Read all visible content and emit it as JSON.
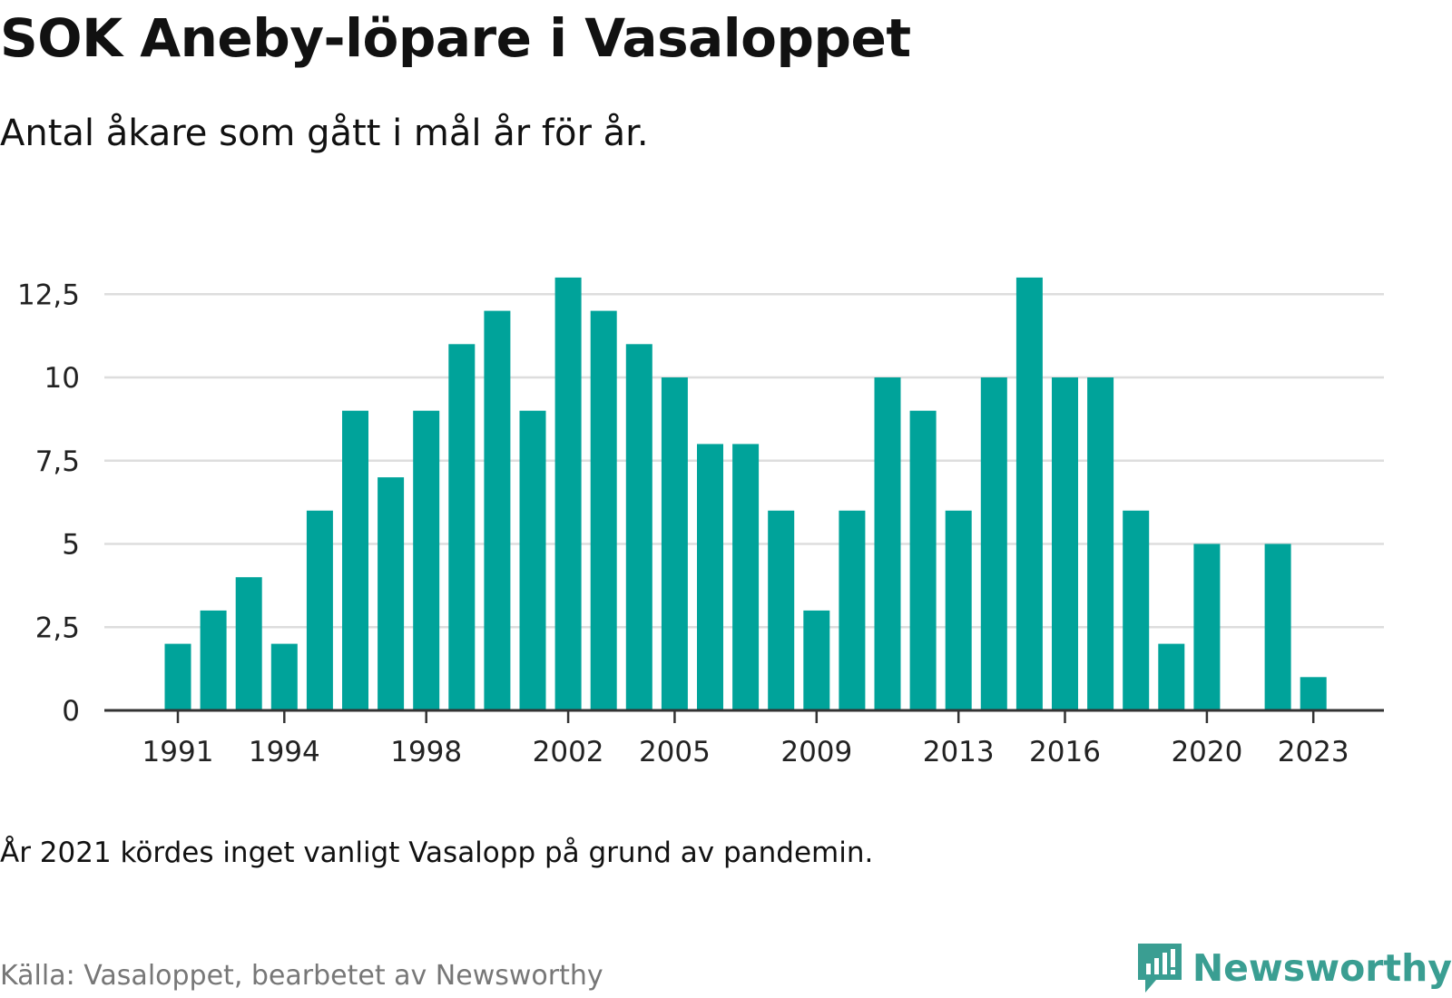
{
  "title": "SOK Aneby-löpare i Vasaloppet",
  "subtitle": "Antal åkare som gått i mål år för år.",
  "note": "År 2021 kördes inget vanligt Vasalopp på grund av pandemin.",
  "source": "Källa: Vasaloppet, bearbetet av Newsworthy",
  "brand": {
    "name": "Newsworthy",
    "color": "#3a9e92",
    "icon": "newsworthy-logo-icon"
  },
  "colors": {
    "bar": "#00a39a",
    "grid": "#dddddd",
    "axis": "#333333"
  },
  "chart_data": {
    "type": "bar",
    "title": "SOK Aneby-löpare i Vasaloppet",
    "subtitle": "Antal åkare som gått i mål år för år.",
    "xlabel": "",
    "ylabel": "",
    "categories": [
      1991,
      1992,
      1993,
      1994,
      1995,
      1996,
      1997,
      1998,
      1999,
      2000,
      2001,
      2002,
      2003,
      2004,
      2005,
      2006,
      2007,
      2008,
      2009,
      2010,
      2011,
      2012,
      2013,
      2014,
      2015,
      2016,
      2017,
      2018,
      2019,
      2020,
      2021,
      2022,
      2023
    ],
    "values": [
      2,
      3,
      4,
      2,
      6,
      9,
      7,
      9,
      11,
      12,
      9,
      13,
      12,
      11,
      10,
      8,
      8,
      6,
      3,
      6,
      10,
      9,
      6,
      10,
      13,
      10,
      10,
      6,
      2,
      5,
      null,
      5,
      1
    ],
    "ylim": [
      0,
      13
    ],
    "yticks": [
      0,
      2.5,
      5,
      7.5,
      10,
      12.5
    ],
    "ytick_labels": [
      "0",
      "2,5",
      "5",
      "7,5",
      "10",
      "12,5"
    ],
    "xtick_labels": [
      "1991",
      "1994",
      "1998",
      "2002",
      "2005",
      "2009",
      "2013",
      "2016",
      "2020",
      "2023"
    ],
    "grid": true,
    "legend": "none"
  }
}
